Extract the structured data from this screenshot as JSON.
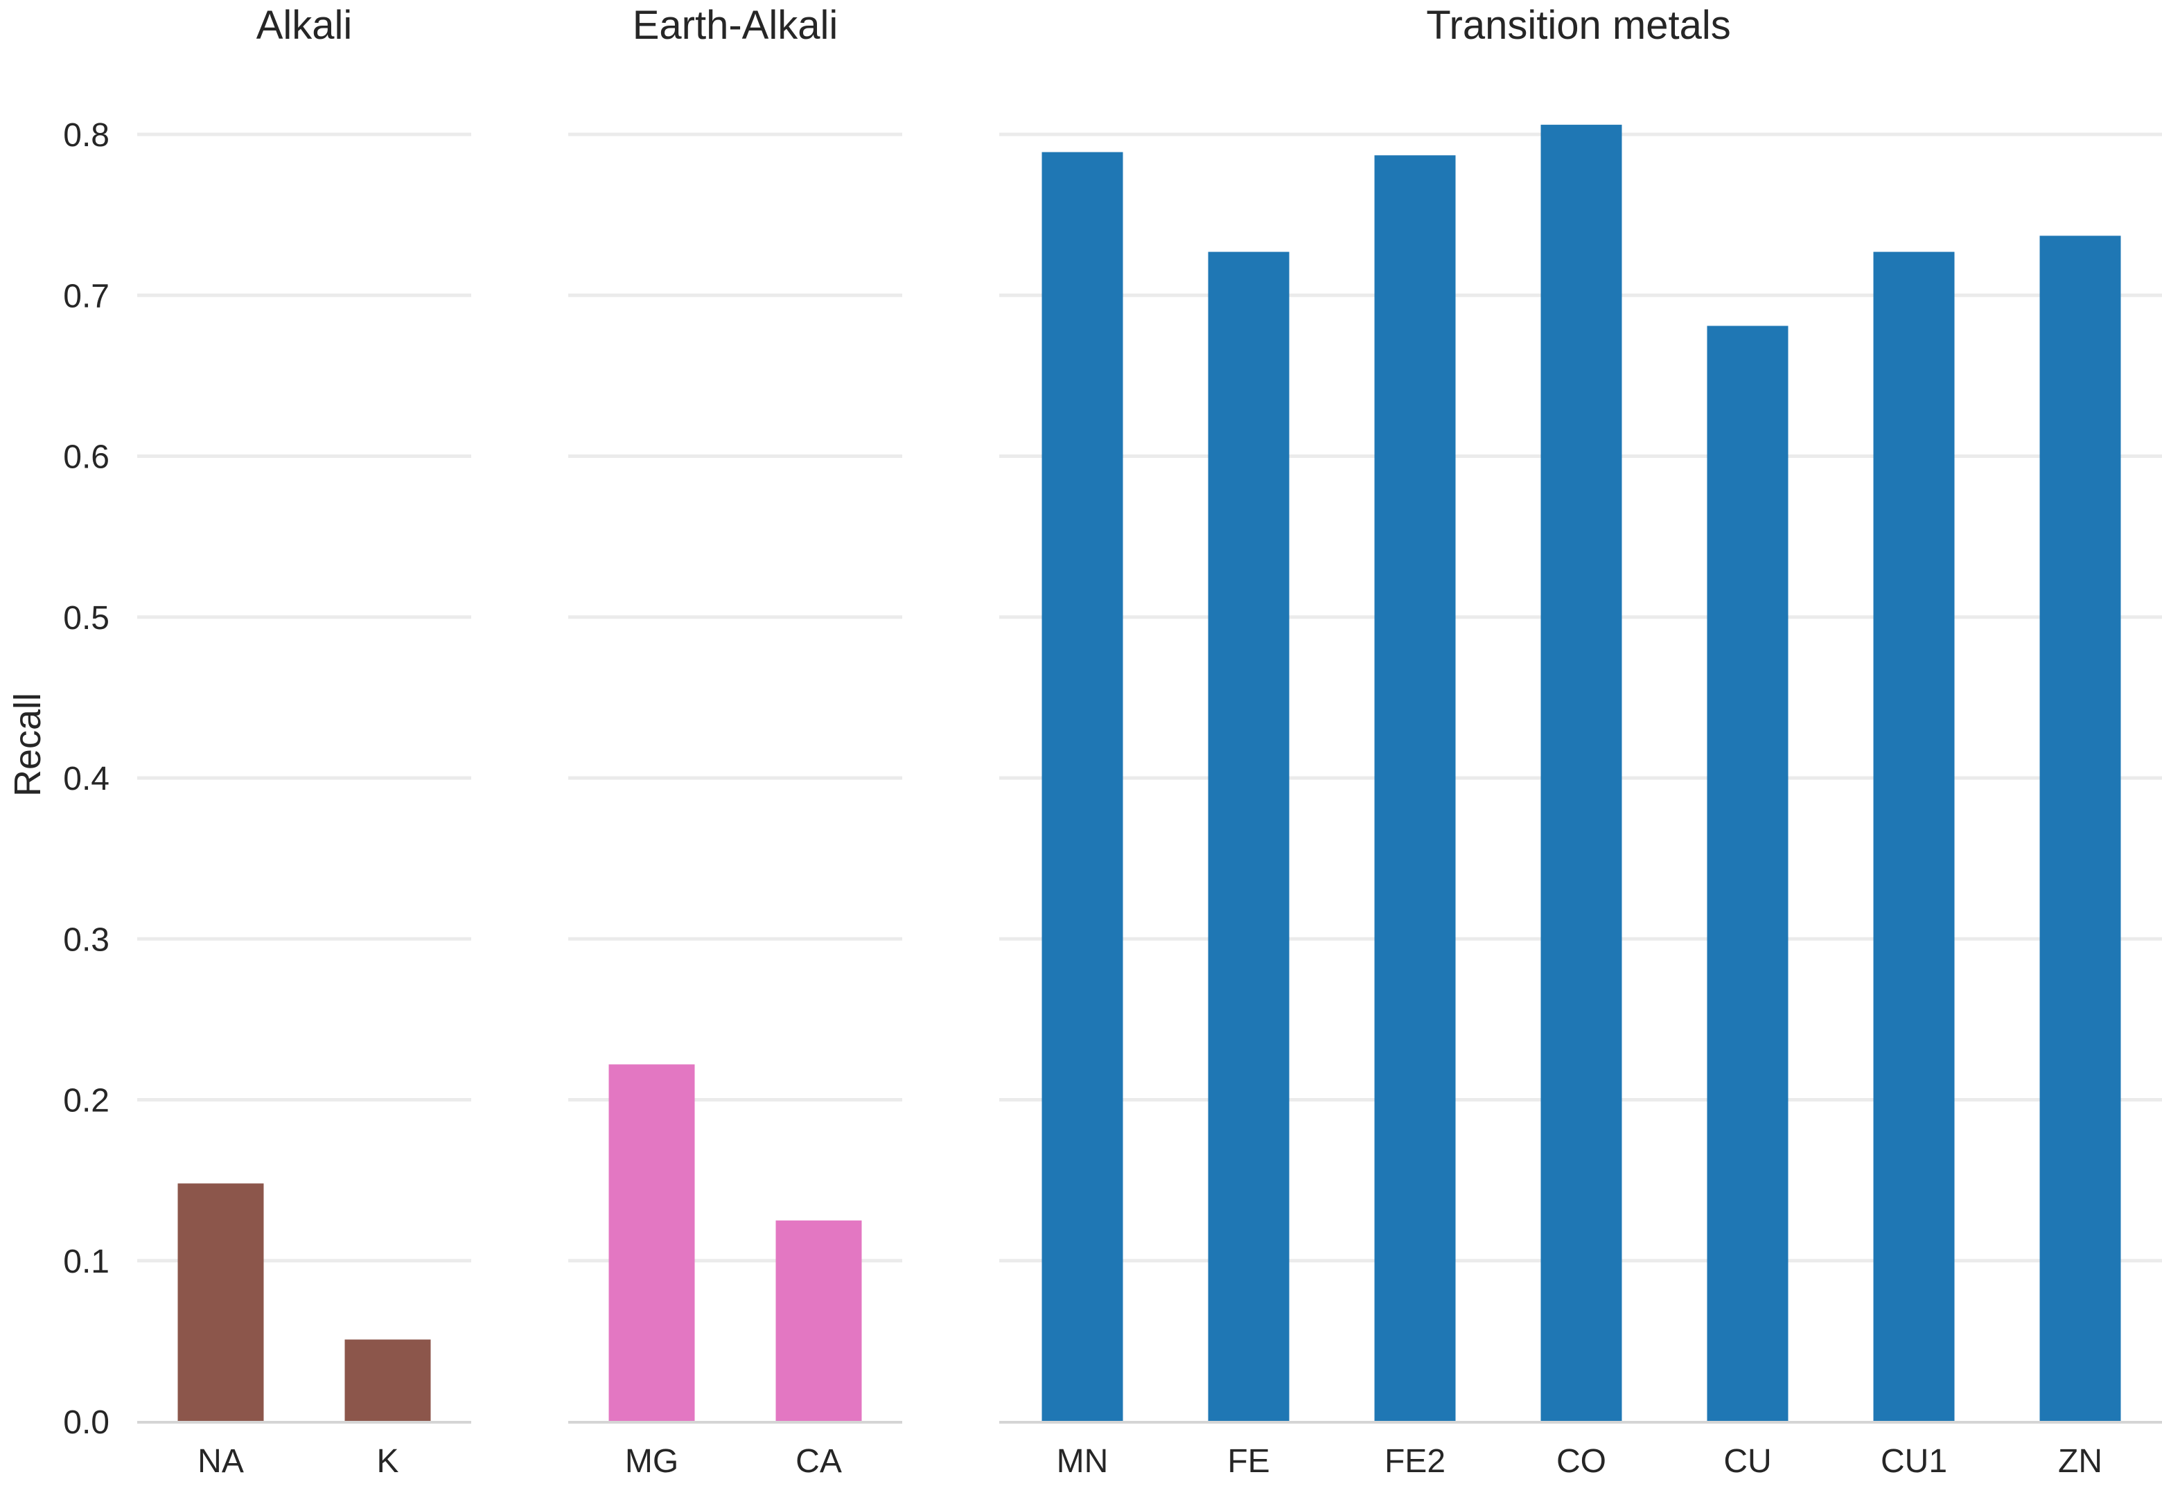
{
  "chart_data": {
    "type": "bar",
    "ylabel": "Recall",
    "ylim": [
      0,
      0.8
    ],
    "yticks": [
      0.0,
      0.1,
      0.2,
      0.3,
      0.4,
      0.5,
      0.6,
      0.7,
      0.8
    ],
    "grid": true,
    "panels": [
      {
        "title": "Alkali",
        "color": "#8c564b",
        "categories": [
          "NA",
          "K"
        ],
        "values": [
          0.148,
          0.051
        ]
      },
      {
        "title": "Earth-Alkali",
        "color": "#e377c2",
        "categories": [
          "MG",
          "CA"
        ],
        "values": [
          0.222,
          0.125
        ]
      },
      {
        "title": "Transition metals",
        "color": "#1f77b4",
        "categories": [
          "MN",
          "FE",
          "FE2",
          "CO",
          "CU",
          "CU1",
          "ZN"
        ],
        "values": [
          0.789,
          0.727,
          0.787,
          0.806,
          0.681,
          0.727,
          0.737
        ]
      }
    ]
  }
}
